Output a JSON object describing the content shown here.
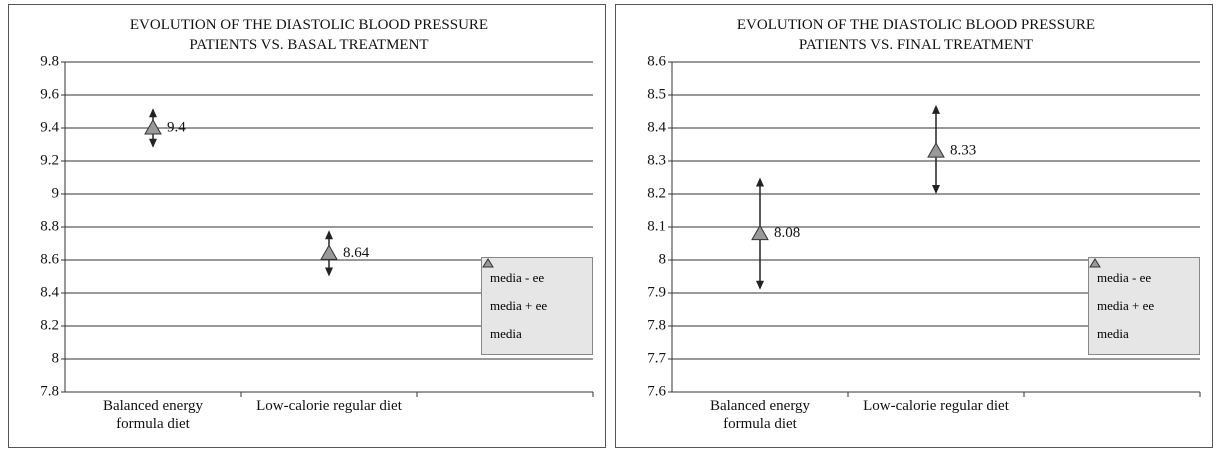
{
  "chart_data": [
    {
      "type": "errorpoint",
      "title": [
        "EVOLUTION OF THE DIASTOLIC BLOOD PRESSURE",
        "PATIENTS VS. BASAL TREATMENT"
      ],
      "categories": [
        "Balanced energy formula diet",
        "Low-calorie regular diet",
        null
      ],
      "series": [
        {
          "name": "media - ee",
          "color": "#222222",
          "values": [
            9.28,
            8.5,
            null
          ]
        },
        {
          "name": "media + ee",
          "color": "#222222",
          "values": [
            9.52,
            8.78,
            null
          ]
        },
        {
          "name": "media",
          "color": "#999999",
          "values": [
            9.4,
            8.64,
            null
          ]
        }
      ],
      "ylim": [
        7.8,
        9.8
      ],
      "yticks": [
        7.8,
        8,
        8.2,
        8.4,
        8.6,
        8.8,
        9,
        9.2,
        9.4,
        9.6,
        9.8
      ],
      "grid": true
    },
    {
      "type": "errorpoint",
      "title": [
        "EVOLUTION OF THE DIASTOLIC BLOOD PRESSURE",
        "PATIENTS VS. FINAL TREATMENT"
      ],
      "categories": [
        "Balanced energy formula diet",
        "Low-calorie regular diet",
        null
      ],
      "series": [
        {
          "name": "media - ee",
          "color": "#222222",
          "values": [
            7.91,
            8.2,
            null
          ]
        },
        {
          "name": "media + ee",
          "color": "#222222",
          "values": [
            8.25,
            8.47,
            null
          ]
        },
        {
          "name": "media",
          "color": "#999999",
          "values": [
            8.08,
            8.33,
            null
          ]
        }
      ],
      "ylim": [
        7.6,
        8.6
      ],
      "yticks": [
        7.6,
        7.7,
        7.8,
        7.9,
        8,
        8.1,
        8.2,
        8.3,
        8.4,
        8.5,
        8.6
      ],
      "grid": true
    }
  ]
}
